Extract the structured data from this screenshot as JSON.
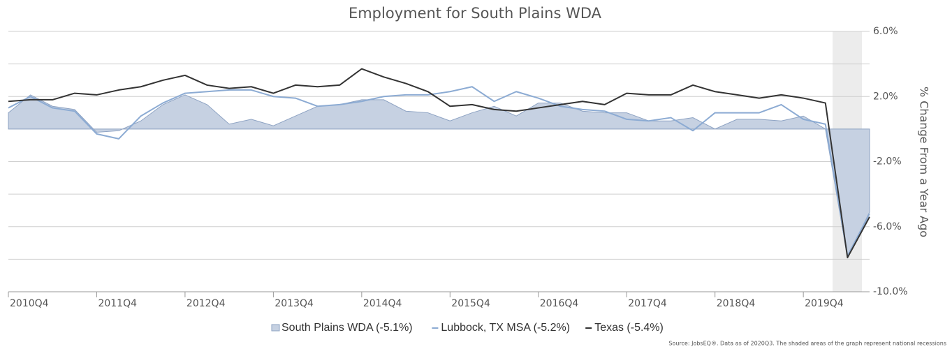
{
  "chart_data": {
    "type": "line",
    "title": "Employment for South Plains WDA",
    "y_label": "% Change From a Year Ago",
    "source": "Source: JobsEQ®. Data as of 2020Q3. The shaded areas of the graph represent national recessions",
    "categories": [
      "2010Q4",
      null,
      null,
      null,
      "2011Q4",
      null,
      null,
      null,
      "2012Q4",
      null,
      null,
      null,
      "2013Q4",
      null,
      null,
      null,
      "2014Q4",
      null,
      null,
      null,
      "2015Q4",
      null,
      null,
      null,
      "2016Q4",
      null,
      null,
      null,
      "2017Q4",
      null,
      null,
      null,
      "2018Q4",
      null,
      null,
      null,
      "2019Q4",
      null,
      null,
      null
    ],
    "series": [
      {
        "name": "South Plains WDA (-5.1%)",
        "kind": "area",
        "color": "#c6d1e2",
        "values": [
          1.0,
          2.1,
          1.4,
          1.2,
          -0.2,
          -0.1,
          0.5,
          1.5,
          2.1,
          1.5,
          0.3,
          0.6,
          0.2,
          0.8,
          1.4,
          1.5,
          1.8,
          1.8,
          1.1,
          1.0,
          0.5,
          1.0,
          1.4,
          0.8,
          1.6,
          1.6,
          1.1,
          1.0,
          1.0,
          0.5,
          0.5,
          0.7,
          0.0,
          0.6,
          0.6,
          0.5,
          0.8,
          0.0,
          -7.9,
          -5.1
        ]
      },
      {
        "name": "Lubbock, TX MSA (-5.2%)",
        "kind": "line",
        "color": "#8cabd3",
        "values": [
          1.3,
          2.0,
          1.3,
          1.1,
          -0.3,
          -0.6,
          0.8,
          1.6,
          2.2,
          2.3,
          2.4,
          2.4,
          2.0,
          1.9,
          1.4,
          1.5,
          1.7,
          2.0,
          2.1,
          2.1,
          2.3,
          2.6,
          1.7,
          2.3,
          1.9,
          1.4,
          1.2,
          1.1,
          0.6,
          0.5,
          0.7,
          -0.1,
          1.0,
          1.0,
          1.0,
          1.5,
          0.6,
          0.3,
          -7.8,
          -5.2
        ]
      },
      {
        "name": "Texas (-5.4%)",
        "kind": "line",
        "color": "#333333",
        "values": [
          1.7,
          1.8,
          1.8,
          2.2,
          2.1,
          2.4,
          2.6,
          3.0,
          3.3,
          2.7,
          2.5,
          2.6,
          2.2,
          2.7,
          2.6,
          2.7,
          3.7,
          3.2,
          2.8,
          2.3,
          1.4,
          1.5,
          1.2,
          1.1,
          1.3,
          1.5,
          1.7,
          1.5,
          2.2,
          2.1,
          2.1,
          2.7,
          2.3,
          2.1,
          1.9,
          2.1,
          1.9,
          1.6,
          -7.9,
          -5.4
        ]
      }
    ],
    "ylim": [
      -10,
      6
    ],
    "yticks": [
      {
        "value": -10,
        "label": "-10.0%"
      },
      {
        "value": -8,
        "label": null
      },
      {
        "value": -6,
        "label": "-6.0%"
      },
      {
        "value": -4,
        "label": null
      },
      {
        "value": -2,
        "label": "-2.0%"
      },
      {
        "value": 0,
        "label": null
      },
      {
        "value": 2,
        "label": "2.0%"
      },
      {
        "value": 4,
        "label": null
      },
      {
        "value": 6,
        "label": "6.0%"
      }
    ],
    "grid": true
  }
}
